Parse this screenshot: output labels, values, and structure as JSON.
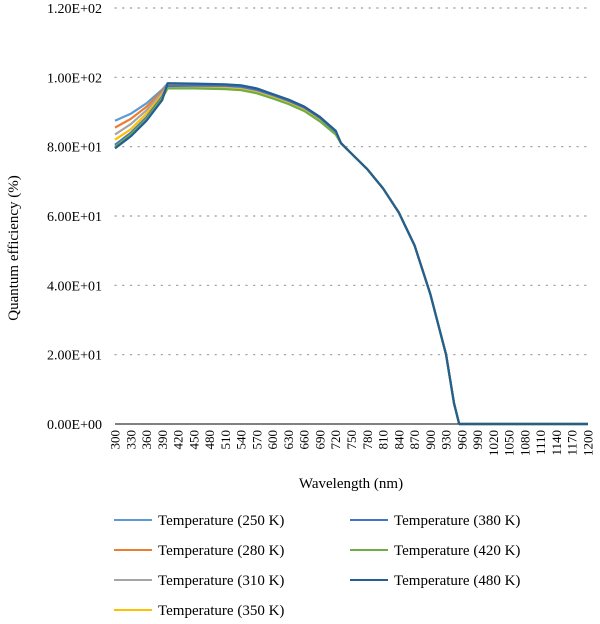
{
  "chart_data": {
    "type": "line",
    "xlabel": "Wavelength (nm)",
    "ylabel": "Quantum efficiency (%)",
    "ylim": [
      0,
      120
    ],
    "y_ticks": [
      "0.00E+00",
      "2.00E+01",
      "4.00E+01",
      "6.00E+01",
      "8.00E+01",
      "1.00E+02",
      "1.20E+02"
    ],
    "x_ticks": [
      "300",
      "330",
      "360",
      "390",
      "420",
      "450",
      "480",
      "510",
      "540",
      "570",
      "600",
      "630",
      "660",
      "690",
      "720",
      "750",
      "780",
      "810",
      "840",
      "870",
      "900",
      "930",
      "960",
      "990",
      "1020",
      "1050",
      "1080",
      "1110",
      "1140",
      "1170",
      "1200"
    ],
    "grid": "horizontal dotted",
    "legend_position": "bottom",
    "x": [
      300,
      330,
      360,
      390,
      400,
      450,
      510,
      540,
      570,
      600,
      630,
      660,
      690,
      720,
      730,
      750,
      780,
      810,
      840,
      870,
      900,
      930,
      945,
      955,
      960,
      970,
      1200
    ],
    "series": [
      {
        "name": "Temperature (250 K)",
        "color": "#5b9bd5",
        "values": [
          87.5,
          89.5,
          92.5,
          96.5,
          98.2,
          98.0,
          97.8,
          97.5,
          96.5,
          95.0,
          93.5,
          91.5,
          88.5,
          84.5,
          81.0,
          78.0,
          73.5,
          68.0,
          61.0,
          51.5,
          37.5,
          20.0,
          6.0,
          0.0,
          0.0,
          0.0,
          0.0
        ]
      },
      {
        "name": "Temperature (280 K)",
        "color": "#ed7d31",
        "values": [
          85.5,
          88.0,
          91.5,
          96.0,
          97.8,
          97.7,
          97.5,
          97.2,
          96.3,
          94.8,
          93.2,
          91.2,
          88.2,
          84.2,
          81.0,
          78.0,
          73.5,
          68.0,
          61.0,
          51.5,
          37.5,
          20.0,
          6.0,
          0.0,
          0.0,
          0.0,
          0.0
        ]
      },
      {
        "name": "Temperature (310 K)",
        "color": "#a5a5a5",
        "values": [
          83.5,
          86.5,
          90.5,
          95.5,
          97.4,
          97.3,
          97.1,
          96.8,
          95.9,
          94.4,
          92.8,
          90.8,
          87.8,
          83.9,
          81.0,
          78.0,
          73.5,
          68.0,
          61.0,
          51.5,
          37.5,
          20.0,
          6.0,
          0.0,
          0.0,
          0.0,
          0.0
        ]
      },
      {
        "name": "Temperature (350 K)",
        "color": "#ffc000",
        "values": [
          82.0,
          85.0,
          89.5,
          95.0,
          97.1,
          97.0,
          96.8,
          96.5,
          95.6,
          94.1,
          92.5,
          90.5,
          87.5,
          83.7,
          81.0,
          78.0,
          73.5,
          68.0,
          61.0,
          51.5,
          37.5,
          20.0,
          6.0,
          0.0,
          0.0,
          0.0,
          0.0
        ]
      },
      {
        "name": "Temperature (380 K)",
        "color": "#4472c4",
        "values": [
          80.5,
          84.0,
          88.5,
          94.5,
          97.5,
          97.6,
          97.6,
          97.3,
          96.4,
          94.9,
          93.3,
          91.3,
          88.3,
          84.3,
          81.0,
          78.0,
          73.5,
          68.0,
          61.0,
          51.5,
          37.5,
          20.0,
          6.0,
          0.0,
          0.0,
          0.0,
          0.0
        ]
      },
      {
        "name": "Temperature (420 K)",
        "color": "#70ad47",
        "values": [
          80.0,
          83.5,
          88.0,
          94.0,
          96.8,
          96.8,
          96.6,
          96.3,
          95.4,
          93.9,
          92.3,
          90.3,
          87.3,
          83.5,
          81.0,
          78.0,
          73.5,
          68.0,
          61.0,
          51.5,
          37.5,
          20.0,
          6.0,
          0.0,
          0.0,
          0.0,
          0.0
        ]
      },
      {
        "name": "Temperature (480 K)",
        "color": "#255e91",
        "values": [
          79.5,
          83.0,
          87.5,
          93.5,
          98.3,
          98.2,
          98.0,
          97.7,
          96.8,
          95.2,
          93.6,
          91.6,
          88.6,
          84.6,
          81.0,
          78.0,
          73.5,
          68.0,
          61.0,
          51.5,
          37.5,
          20.0,
          6.0,
          0.0,
          0.0,
          0.0,
          0.0
        ]
      }
    ]
  }
}
